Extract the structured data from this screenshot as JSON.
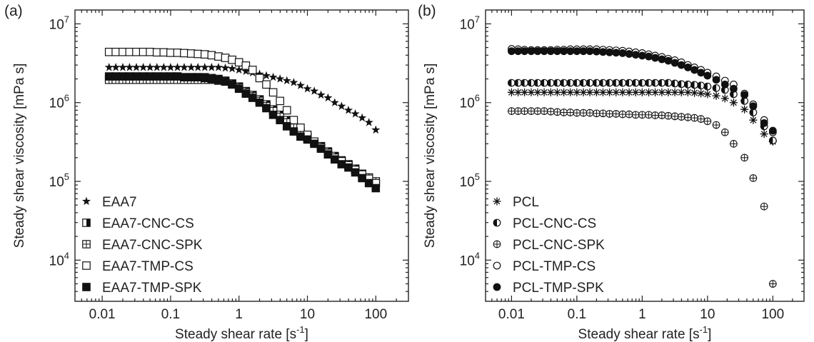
{
  "chart_data": [
    {
      "type": "scatter",
      "panel_label": "(a)",
      "xlabel": "Steady shear rate [s",
      "xlabel_sup": "-1",
      "xlabel_end": "]",
      "ylabel": "Steady shear viscosity [mPa s]",
      "xscale": "log",
      "yscale": "log",
      "xlim": [
        0.004,
        300
      ],
      "ylim": [
        3000,
        15000000
      ],
      "x_ticks": [
        {
          "value": 0.01,
          "label": "0.01"
        },
        {
          "value": 0.1,
          "label": "0.1"
        },
        {
          "value": 1,
          "label": "1"
        },
        {
          "value": 10,
          "label": "10"
        },
        {
          "value": 100,
          "label": "100"
        }
      ],
      "y_ticks": [
        {
          "value": 10000,
          "base": "10",
          "exp": "4"
        },
        {
          "value": 100000,
          "base": "10",
          "exp": "5"
        },
        {
          "value": 1000000,
          "base": "10",
          "exp": "6"
        },
        {
          "value": 10000000,
          "base": "10",
          "exp": "7"
        }
      ],
      "legend_position": "bottom-left",
      "series": [
        {
          "name": "EAA7",
          "marker": "star",
          "x": [
            0.0126,
            0.0158,
            0.02,
            0.0251,
            0.0316,
            0.0398,
            0.0501,
            0.0631,
            0.0794,
            0.1,
            0.126,
            0.158,
            0.2,
            0.251,
            0.316,
            0.398,
            0.501,
            0.631,
            0.794,
            1,
            1.26,
            1.58,
            2,
            2.51,
            3.16,
            3.98,
            5.01,
            6.31,
            7.94,
            10,
            12.6,
            15.8,
            20,
            25.1,
            31.6,
            39.8,
            50.1,
            63.1,
            79.4,
            100
          ],
          "y": [
            2800000,
            2800000,
            2800000,
            2800000,
            2800000,
            2800000,
            2800000,
            2800000,
            2800000,
            2800000,
            2800000,
            2800000,
            2800000,
            2800000,
            2800000,
            2800000,
            2800000,
            2750000,
            2700000,
            2600000,
            2500000,
            2400000,
            2300000,
            2200000,
            2100000,
            2000000,
            1900000,
            1800000,
            1650000,
            1500000,
            1400000,
            1250000,
            1150000,
            1000000,
            900000,
            800000,
            720000,
            640000,
            560000,
            450000
          ]
        },
        {
          "name": "EAA7-CNC-CS",
          "marker": "square-half",
          "x": [
            0.0126,
            0.0158,
            0.02,
            0.0251,
            0.0316,
            0.0398,
            0.0501,
            0.0631,
            0.0794,
            0.1,
            0.126,
            0.158,
            0.2,
            0.251,
            0.316,
            0.398,
            0.501,
            0.631,
            0.794,
            1,
            1.26,
            1.58,
            2,
            2.51,
            3.16,
            3.98,
            5.01,
            6.31,
            7.94,
            10,
            12.6,
            15.8,
            20,
            25.1,
            31.6,
            39.8,
            50.1,
            63.1,
            79.4,
            100
          ],
          "y": [
            2100000,
            2100000,
            2100000,
            2100000,
            2100000,
            2100000,
            2100000,
            2100000,
            2100000,
            2100000,
            2100000,
            2100000,
            2100000,
            2100000,
            2100000,
            2050000,
            2000000,
            1900000,
            1750000,
            1600000,
            1400000,
            1250000,
            1100000,
            950000,
            820000,
            700000,
            600000,
            500000,
            430000,
            370000,
            320000,
            280000,
            240000,
            210000,
            185000,
            165000,
            145000,
            125000,
            110000,
            95000
          ]
        },
        {
          "name": "EAA7-CNC-SPK",
          "marker": "square-cross",
          "x": [
            0.0126,
            0.0158,
            0.02,
            0.0251,
            0.0316,
            0.0398,
            0.0501,
            0.0631,
            0.0794,
            0.1,
            0.126,
            0.158,
            0.2,
            0.251,
            0.316,
            0.398,
            0.501,
            0.631,
            0.794,
            1,
            1.26,
            1.58,
            2,
            2.51,
            3.16,
            3.98,
            5.01,
            6.31,
            7.94,
            10,
            12.6,
            15.8,
            20,
            25.1,
            31.6,
            39.8,
            50.1,
            63.1,
            79.4,
            100
          ],
          "y": [
            1950000,
            1950000,
            1950000,
            1950000,
            1950000,
            1950000,
            1950000,
            1950000,
            1950000,
            1950000,
            1950000,
            1950000,
            1950000,
            1950000,
            1950000,
            1950000,
            1900000,
            1850000,
            1700000,
            1550000,
            1350000,
            1200000,
            1050000,
            900000,
            780000,
            660000,
            560000,
            480000,
            410000,
            360000,
            310000,
            270000,
            230000,
            200000,
            180000,
            160000,
            140000,
            125000,
            112000,
            100000
          ]
        },
        {
          "name": "EAA7-TMP-CS",
          "marker": "square-open",
          "x": [
            0.0126,
            0.0158,
            0.02,
            0.0251,
            0.0316,
            0.0398,
            0.0501,
            0.0631,
            0.0794,
            0.1,
            0.126,
            0.158,
            0.2,
            0.251,
            0.316,
            0.398,
            0.501,
            0.631,
            0.794,
            1,
            1.26,
            1.58,
            2,
            2.51,
            3.16,
            3.98,
            5.01,
            6.31,
            7.94,
            10,
            12.6,
            15.8,
            20,
            25.1,
            31.6,
            39.8,
            50.1,
            63.1,
            79.4,
            100
          ],
          "y": [
            4400000,
            4400000,
            4400000,
            4400000,
            4400000,
            4400000,
            4400000,
            4350000,
            4350000,
            4300000,
            4300000,
            4250000,
            4200000,
            4150000,
            4100000,
            4000000,
            3850000,
            3700000,
            3500000,
            3250000,
            2950000,
            2600000,
            2050000,
            1700000,
            1350000,
            1050000,
            800000,
            600000,
            480000,
            390000,
            320000,
            270000,
            230000,
            200000,
            180000,
            160000,
            140000,
            122000,
            108000,
            95000
          ]
        },
        {
          "name": "EAA7-TMP-SPK",
          "marker": "square-filled",
          "x": [
            0.0126,
            0.0158,
            0.02,
            0.0251,
            0.0316,
            0.0398,
            0.0501,
            0.0631,
            0.0794,
            0.1,
            0.126,
            0.158,
            0.2,
            0.251,
            0.316,
            0.398,
            0.501,
            0.631,
            0.794,
            1,
            1.26,
            1.58,
            2,
            2.51,
            3.16,
            3.98,
            5.01,
            6.31,
            7.94,
            10,
            12.6,
            15.8,
            20,
            25.1,
            31.6,
            39.8,
            50.1,
            63.1,
            79.4,
            100
          ],
          "y": [
            2150000,
            2150000,
            2150000,
            2150000,
            2150000,
            2150000,
            2150000,
            2150000,
            2150000,
            2150000,
            2150000,
            2100000,
            2100000,
            2100000,
            2050000,
            2000000,
            1950000,
            1850000,
            1700000,
            1500000,
            1300000,
            1150000,
            1000000,
            850000,
            700000,
            600000,
            500000,
            430000,
            370000,
            340000,
            300000,
            260000,
            220000,
            190000,
            165000,
            150000,
            130000,
            110000,
            95000,
            82000
          ]
        }
      ]
    },
    {
      "type": "scatter",
      "panel_label": "(b)",
      "xlabel": "Steady shear rate [s",
      "xlabel_sup": "-1",
      "xlabel_end": "]",
      "ylabel": "Steady shear viscosity [mPa s]",
      "xscale": "log",
      "yscale": "log",
      "xlim": [
        0.004,
        300
      ],
      "ylim": [
        3000,
        15000000
      ],
      "x_ticks": [
        {
          "value": 0.01,
          "label": "0.01"
        },
        {
          "value": 0.1,
          "label": "0.1"
        },
        {
          "value": 1,
          "label": "1"
        },
        {
          "value": 10,
          "label": "10"
        },
        {
          "value": 100,
          "label": "100"
        }
      ],
      "y_ticks": [
        {
          "value": 10000,
          "base": "10",
          "exp": "4"
        },
        {
          "value": 100000,
          "base": "10",
          "exp": "5"
        },
        {
          "value": 1000000,
          "base": "10",
          "exp": "6"
        },
        {
          "value": 10000000,
          "base": "10",
          "exp": "7"
        }
      ],
      "legend_position": "bottom-left",
      "series": [
        {
          "name": "PCL",
          "marker": "asterisk",
          "x": [
            0.01,
            0.0126,
            0.0158,
            0.02,
            0.0251,
            0.0316,
            0.0398,
            0.0501,
            0.0631,
            0.0794,
            0.1,
            0.126,
            0.158,
            0.2,
            0.251,
            0.316,
            0.398,
            0.501,
            0.631,
            0.794,
            1,
            1.26,
            1.58,
            2,
            2.51,
            3.16,
            3.98,
            5.01,
            6.31,
            7.94,
            10,
            13.6,
            18.5,
            25.1,
            36.8,
            50.1,
            73.6,
            100
          ],
          "y": [
            1350000,
            1350000,
            1350000,
            1350000,
            1350000,
            1350000,
            1350000,
            1350000,
            1350000,
            1350000,
            1350000,
            1350000,
            1350000,
            1350000,
            1350000,
            1350000,
            1350000,
            1350000,
            1350000,
            1350000,
            1350000,
            1350000,
            1350000,
            1350000,
            1350000,
            1350000,
            1350000,
            1350000,
            1330000,
            1310000,
            1280000,
            1220000,
            1130000,
            1000000,
            820000,
            600000,
            400000,
            320000
          ]
        },
        {
          "name": "PCL-CNC-CS",
          "marker": "circle-half",
          "x": [
            0.01,
            0.0126,
            0.0158,
            0.02,
            0.0251,
            0.0316,
            0.0398,
            0.0501,
            0.0631,
            0.0794,
            0.1,
            0.126,
            0.158,
            0.2,
            0.251,
            0.316,
            0.398,
            0.501,
            0.631,
            0.794,
            1,
            1.26,
            1.58,
            2,
            2.51,
            3.16,
            3.98,
            5.01,
            6.31,
            7.94,
            10,
            13.6,
            18.5,
            25.1,
            36.8,
            50.1,
            73.6,
            100
          ],
          "y": [
            1780000,
            1780000,
            1780000,
            1780000,
            1780000,
            1780000,
            1780000,
            1780000,
            1780000,
            1780000,
            1780000,
            1780000,
            1780000,
            1780000,
            1780000,
            1780000,
            1780000,
            1780000,
            1780000,
            1780000,
            1780000,
            1780000,
            1780000,
            1780000,
            1780000,
            1750000,
            1720000,
            1700000,
            1680000,
            1650000,
            1600000,
            1530000,
            1450000,
            1280000,
            1050000,
            750000,
            500000,
            330000
          ]
        },
        {
          "name": "PCL-CNC-SPK",
          "marker": "circle-cross",
          "x": [
            0.01,
            0.0126,
            0.0158,
            0.02,
            0.0251,
            0.0316,
            0.0398,
            0.0501,
            0.0631,
            0.0794,
            0.1,
            0.126,
            0.158,
            0.2,
            0.251,
            0.316,
            0.398,
            0.501,
            0.631,
            0.794,
            1,
            1.26,
            1.58,
            2,
            2.51,
            3.16,
            3.98,
            5.01,
            6.31,
            7.94,
            10,
            13.6,
            18.5,
            25.1,
            36.8,
            50.1,
            73.6,
            100
          ],
          "y": [
            780000,
            780000,
            780000,
            780000,
            780000,
            780000,
            770000,
            760000,
            750000,
            750000,
            740000,
            740000,
            740000,
            730000,
            730000,
            720000,
            720000,
            710000,
            710000,
            700000,
            700000,
            700000,
            690000,
            690000,
            680000,
            670000,
            660000,
            650000,
            640000,
            620000,
            580000,
            520000,
            420000,
            300000,
            200000,
            110000,
            48000,
            5000
          ]
        },
        {
          "name": "PCL-TMP-CS",
          "marker": "circle-open",
          "x": [
            0.01,
            0.0126,
            0.0158,
            0.02,
            0.0251,
            0.0316,
            0.0398,
            0.0501,
            0.0631,
            0.0794,
            0.1,
            0.126,
            0.158,
            0.2,
            0.251,
            0.316,
            0.398,
            0.501,
            0.631,
            0.794,
            1,
            1.26,
            1.58,
            2,
            2.51,
            3.16,
            3.98,
            5.01,
            6.31,
            7.94,
            10,
            13.6,
            18.5,
            25.1,
            36.8,
            50.1,
            73.6,
            100
          ],
          "y": [
            4800000,
            4750000,
            4700000,
            4650000,
            4650000,
            4650000,
            4650000,
            4700000,
            4700000,
            4750000,
            4750000,
            4750000,
            4750000,
            4750000,
            4700000,
            4650000,
            4600000,
            4550000,
            4450000,
            4350000,
            4250000,
            4100000,
            3950000,
            3800000,
            3600000,
            3450000,
            3250000,
            3000000,
            2800000,
            2600000,
            2400000,
            2150000,
            1900000,
            1700000,
            1300000,
            950000,
            600000,
            420000
          ]
        },
        {
          "name": "PCL-TMP-SPK",
          "marker": "circle-filled",
          "x": [
            0.01,
            0.0126,
            0.0158,
            0.02,
            0.0251,
            0.0316,
            0.0398,
            0.0501,
            0.0631,
            0.0794,
            0.1,
            0.126,
            0.158,
            0.2,
            0.251,
            0.316,
            0.398,
            0.501,
            0.631,
            0.794,
            1,
            1.26,
            1.58,
            2,
            2.51,
            3.16,
            3.98,
            5.01,
            6.31,
            7.94,
            10,
            13.6,
            18.5,
            25.1,
            36.8,
            50.1,
            73.6,
            100
          ],
          "y": [
            4500000,
            4500000,
            4500000,
            4500000,
            4500000,
            4500000,
            4500000,
            4500000,
            4500000,
            4500000,
            4500000,
            4500000,
            4500000,
            4450000,
            4400000,
            4350000,
            4300000,
            4250000,
            4150000,
            4050000,
            3950000,
            3850000,
            3700000,
            3550000,
            3400000,
            3200000,
            3000000,
            2800000,
            2600000,
            2400000,
            2200000,
            1950000,
            1700000,
            1500000,
            1250000,
            900000,
            550000,
            440000
          ]
        }
      ]
    }
  ]
}
